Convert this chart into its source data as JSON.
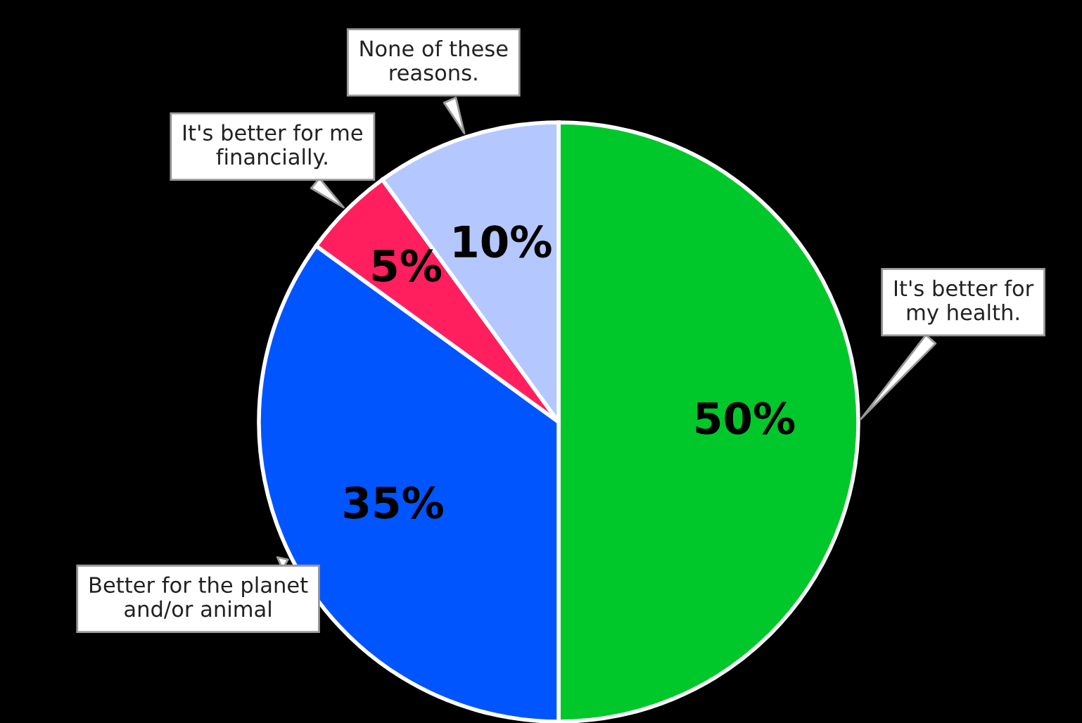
{
  "chart_data": {
    "type": "pie",
    "categories": [
      "It's better for\nmy health.",
      "Better for the planet\nand/or animal",
      "It's better for me\nfinancially.",
      "None of these\nreasons."
    ],
    "values": [
      50,
      35,
      5,
      10
    ],
    "colors": [
      "#00c82a",
      "#0055ff",
      "#ff1f5f",
      "#b4c8ff"
    ],
    "value_labels": [
      "50%",
      "35%",
      "5%",
      "10%"
    ],
    "legend": false
  }
}
